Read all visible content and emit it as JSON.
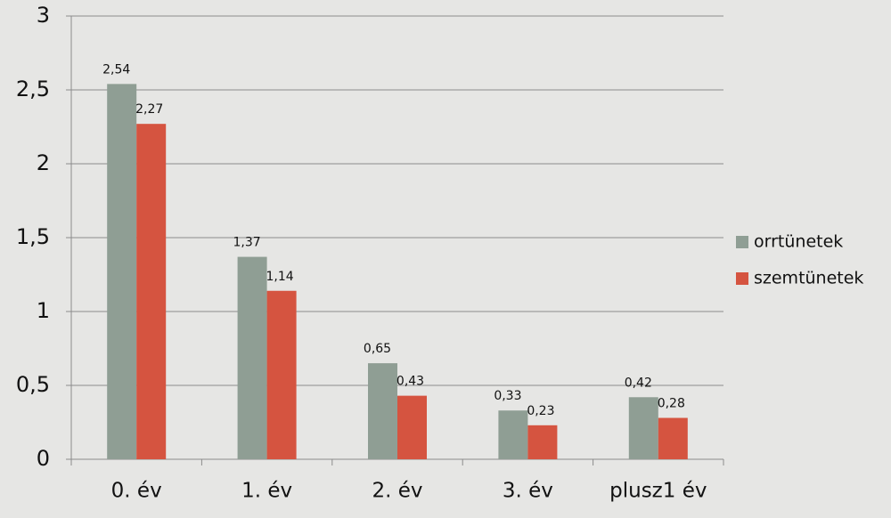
{
  "chart_data": {
    "type": "bar",
    "categories": [
      "0. év",
      "1. év",
      "2. év",
      "3. év",
      "plusz1 év"
    ],
    "series": [
      {
        "name": "orrtünetek",
        "color": "#8f9e94",
        "values": [
          2.54,
          1.37,
          0.65,
          0.33,
          0.42
        ],
        "value_labels": [
          "2,54",
          "1,37",
          "0,65",
          "0,33",
          "0,42"
        ]
      },
      {
        "name": "szemtünetek",
        "color": "#d55440",
        "values": [
          2.27,
          1.14,
          0.43,
          0.23,
          0.28
        ],
        "value_labels": [
          "2,27",
          "1,14",
          "0,43",
          "0,23",
          "0,28"
        ]
      }
    ],
    "ylim": [
      0,
      3
    ],
    "yticks": [
      0,
      {
        "value": 0.5,
        "label": "0,5"
      },
      1,
      {
        "value": 1.5,
        "label": "1,5"
      },
      2,
      {
        "value": 2.5,
        "label": "2,5"
      },
      3
    ],
    "grid": true,
    "legend": "right"
  }
}
